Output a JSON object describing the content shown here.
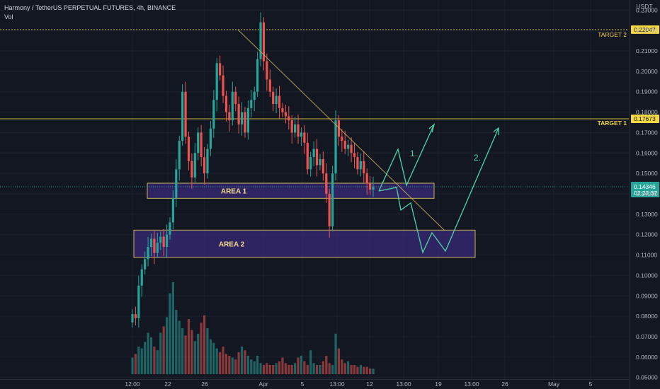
{
  "header": {
    "title": "Harmony / TetherUS PERPETUAL FUTURES, 4h, BINANCE",
    "volume_label": "Vol"
  },
  "chart_data": {
    "type": "candlestick",
    "symbol": "Harmony / TetherUS PERPETUAL FUTURES",
    "interval": "4h",
    "exchange": "BINANCE",
    "currency": "USDT",
    "ylim": [
      0.0485,
      0.2315
    ],
    "y_ticks": [
      0.23,
      0.22,
      0.21,
      0.2,
      0.19,
      0.18,
      0.17,
      0.16,
      0.15,
      0.14,
      0.13,
      0.12,
      0.11,
      0.1,
      0.09,
      0.08,
      0.07,
      0.06,
      0.05
    ],
    "y_tick_labels": [
      "0.23000",
      "0.22000",
      "0.21000",
      "0.20000",
      "0.19000",
      "0.18000",
      "0.17000",
      "0.16000",
      "0.15000",
      "0.14000",
      "0.13000",
      "0.12000",
      "0.11000",
      "0.10000",
      "0.09000",
      "0.08000",
      "0.07000",
      "0.06000",
      "0.05000"
    ],
    "x_labels": [
      "12:00",
      "22",
      "26",
      "Apr",
      "5",
      "13:00",
      "12",
      "13:00",
      "19",
      "13:00",
      "26",
      "May",
      "5"
    ],
    "current_price": {
      "value": 0.14346,
      "label": "0.14346",
      "countdown": "02:22:37"
    },
    "price_path": [
      0.081,
      0.079,
      0.095,
      0.103,
      0.108,
      0.114,
      0.118,
      0.111,
      0.116,
      0.119,
      0.114,
      0.12,
      0.126,
      0.138,
      0.152,
      0.166,
      0.19,
      0.168,
      0.156,
      0.148,
      0.16,
      0.17,
      0.158,
      0.15,
      0.162,
      0.172,
      0.186,
      0.204,
      0.198,
      0.188,
      0.18,
      0.176,
      0.19,
      0.184,
      0.174,
      0.18,
      0.17,
      0.182,
      0.186,
      0.19,
      0.206,
      0.224,
      0.205,
      0.196,
      0.19,
      0.184,
      0.188,
      0.182,
      0.18,
      0.178,
      0.176,
      0.17,
      0.174,
      0.168,
      0.17,
      0.165,
      0.152,
      0.158,
      0.162,
      0.154,
      0.157,
      0.15,
      0.14,
      0.124,
      0.15,
      0.176,
      0.168,
      0.166,
      0.162,
      0.164,
      0.16,
      0.158,
      0.152,
      0.156,
      0.15,
      0.145,
      0.142,
      0.14346
    ],
    "volume": [
      0.18,
      0.22,
      0.3,
      0.28,
      0.35,
      0.45,
      0.4,
      0.3,
      0.26,
      0.45,
      0.52,
      0.62,
      0.88,
      1.0,
      0.7,
      0.58,
      0.5,
      0.42,
      0.6,
      0.48,
      0.36,
      0.44,
      0.56,
      0.64,
      0.5,
      0.38,
      0.34,
      0.28,
      0.24,
      0.3,
      0.22,
      0.2,
      0.18,
      0.16,
      0.24,
      0.3,
      0.26,
      0.2,
      0.16,
      0.14,
      0.2,
      0.12,
      0.1,
      0.12,
      0.1,
      0.1,
      0.12,
      0.14,
      0.18,
      0.12,
      0.1,
      0.1,
      0.12,
      0.18,
      0.2,
      0.14,
      0.1,
      0.26,
      0.12,
      0.1,
      0.1,
      0.14,
      0.2,
      0.12,
      0.1,
      0.44,
      0.28,
      0.16,
      0.12,
      0.14,
      0.1,
      0.1,
      0.08,
      0.1,
      0.08,
      0.08,
      0.06,
      0.06
    ],
    "levels": [
      {
        "name": "TARGET 2",
        "value": 0.22047,
        "label": "0.22047",
        "color": "#f5d742"
      },
      {
        "name": "TARGET 1",
        "value": 0.17673,
        "label": "0.17673",
        "color": "#f5d742"
      }
    ],
    "zones": [
      {
        "name": "AREA 1",
        "top": 0.1452,
        "bottom": 0.1378
      },
      {
        "name": "AREA 2",
        "top": 0.1222,
        "bottom": 0.1088
      }
    ],
    "scenarios": [
      {
        "name": "1."
      },
      {
        "name": "2."
      }
    ],
    "colors": {
      "up": "#26a69a",
      "down": "#ef5350",
      "background": "#131722",
      "zone_fill": "#3a2a78",
      "zone_border": "#c8b45a",
      "projection": "#4cd6a8",
      "trendline": "#c8b45a",
      "price_line": "#26a69a"
    }
  },
  "price_axis": {
    "currency": "USDT"
  }
}
